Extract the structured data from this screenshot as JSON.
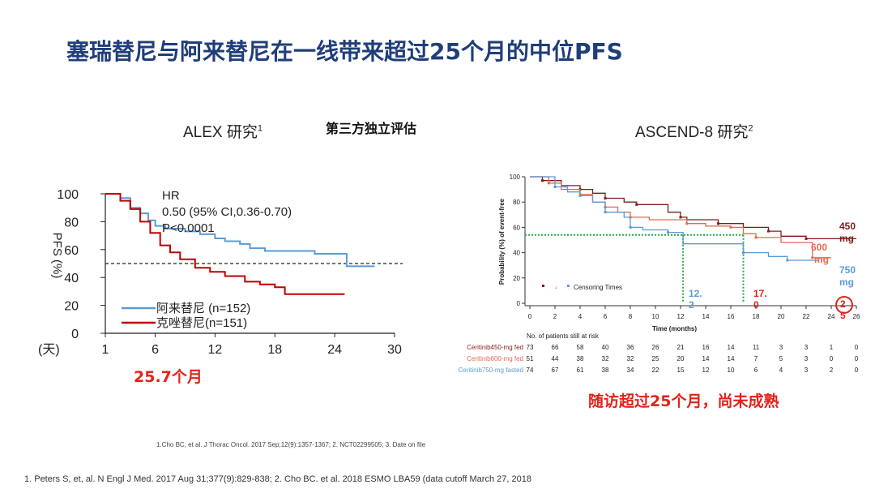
{
  "slide": {
    "title": "塞瑞替尼与阿来替尼在一线带来超过25个月的中位PFS",
    "left_title": "ALEX 研究",
    "left_title_sup": "1",
    "center_label": "第三方独立评估",
    "right_title": "ASCEND-8 研究",
    "right_title_sup": "2",
    "left_median": "25.7个月",
    "right_note": "随访超过25个月，尚未成熟",
    "footnote_small": "1.Cho BC, et al. J Thorac Oncol. 2017 Sep;12(9):1357-1367;  2. NCT02299505;  3. Date on file",
    "footnote": "1. Peters S, et, al. N Engl J Med. 2017 Aug 31;377(9):829-838;   2. Cho BC. et al. 2018 ESMO LBA59 (data cutoff March 27, 2018",
    "colors": {
      "title": "#1f3e7a",
      "highlight": "#e2231a"
    }
  },
  "chart_data": [
    {
      "type": "line",
      "ylabel": "PFS (%)",
      "xlabel": "(天)",
      "x_ticks": [
        1,
        6,
        12,
        18,
        24,
        30
      ],
      "y_ticks": [
        0,
        20,
        40,
        60,
        80,
        100
      ],
      "xlim": [
        1,
        30
      ],
      "ylim": [
        0,
        100
      ],
      "annotation": [
        "HR",
        "0.50 (95% CI,0.36-0.70)",
        "P<0.0001"
      ],
      "reference_line_y": 50,
      "legend_position": "bottom-left",
      "series": [
        {
          "name": "阿来替尼 (n=152)",
          "color": "#5b9bd5",
          "points": [
            [
              1,
              100
            ],
            [
              2.5,
              100
            ],
            [
              2.5,
              97
            ],
            [
              3.5,
              97
            ],
            [
              3.5,
              90
            ],
            [
              4.5,
              90
            ],
            [
              4.5,
              86
            ],
            [
              5.3,
              86
            ],
            [
              5.3,
              81
            ],
            [
              6,
              81
            ],
            [
              6,
              77
            ],
            [
              7,
              77
            ],
            [
              7,
              75
            ],
            [
              9,
              75
            ],
            [
              9,
              73
            ],
            [
              10.5,
              73
            ],
            [
              10.5,
              71
            ],
            [
              12,
              71
            ],
            [
              12,
              68
            ],
            [
              13,
              68
            ],
            [
              13,
              66
            ],
            [
              14.5,
              66
            ],
            [
              14.5,
              64
            ],
            [
              15.5,
              64
            ],
            [
              15.5,
              61
            ],
            [
              17,
              61
            ],
            [
              17,
              59
            ],
            [
              22,
              59
            ],
            [
              22,
              57
            ],
            [
              25.2,
              57
            ],
            [
              25.2,
              48
            ],
            [
              28,
              48
            ]
          ]
        },
        {
          "name": "克唑替尼(n=151)",
          "color": "#c00000",
          "points": [
            [
              1,
              100
            ],
            [
              2.5,
              100
            ],
            [
              2.5,
              95
            ],
            [
              3.5,
              95
            ],
            [
              3.5,
              89
            ],
            [
              4.5,
              89
            ],
            [
              4.5,
              80
            ],
            [
              5.5,
              80
            ],
            [
              5.5,
              72
            ],
            [
              6.5,
              72
            ],
            [
              6.5,
              63
            ],
            [
              7.5,
              63
            ],
            [
              7.5,
              58
            ],
            [
              8.5,
              58
            ],
            [
              8.5,
              53
            ],
            [
              10,
              53
            ],
            [
              10,
              47
            ],
            [
              11.5,
              47
            ],
            [
              11.5,
              44
            ],
            [
              13,
              44
            ],
            [
              13,
              41
            ],
            [
              15,
              41
            ],
            [
              15,
              37
            ],
            [
              16.5,
              37
            ],
            [
              16.5,
              35
            ],
            [
              18,
              35
            ],
            [
              18,
              33
            ],
            [
              19,
              33
            ],
            [
              19,
              28
            ],
            [
              25,
              28
            ]
          ]
        }
      ]
    },
    {
      "type": "line",
      "ylabel": "Probability (%) of event-free",
      "xlabel": "Time (months)",
      "x_ticks": [
        0,
        2,
        4,
        6,
        8,
        10,
        12,
        14,
        16,
        18,
        20,
        22,
        24,
        26
      ],
      "y_ticks": [
        0,
        20,
        40,
        60,
        80,
        100
      ],
      "xlim": [
        0,
        26
      ],
      "ylim": [
        0,
        100
      ],
      "legend_label": "Censoring Times",
      "legend_position": "bottom-left",
      "reference_line_y": 54,
      "median_labels": [
        {
          "text": "12.2",
          "line1": "12.",
          "line2": "2",
          "color": "#5b9bd5"
        },
        {
          "text": "17.0",
          "line1": "17.",
          "line2": "0",
          "color": "#e2231a"
        },
        {
          "text": "25",
          "line1": "2",
          "line2": "5",
          "color": "#e2231a"
        }
      ],
      "end_labels": [
        {
          "line1": "450",
          "line2": "mg",
          "color": "#7f1d1d"
        },
        {
          "line1": "600",
          "line2": "mg",
          "color": "#e26b52"
        },
        {
          "line1": "750",
          "line2": "mg",
          "color": "#5b9bd5"
        }
      ],
      "series": [
        {
          "name": "Ceritinib450-mg fed",
          "color": "#7f1d1d",
          "points": [
            [
              0,
              100
            ],
            [
              1,
              100
            ],
            [
              1,
              97
            ],
            [
              2.5,
              97
            ],
            [
              2.5,
              93
            ],
            [
              4,
              93
            ],
            [
              4,
              90
            ],
            [
              5,
              90
            ],
            [
              5,
              87
            ],
            [
              6,
              87
            ],
            [
              6,
              83
            ],
            [
              7.5,
              83
            ],
            [
              7.5,
              80
            ],
            [
              8.5,
              80
            ],
            [
              8.5,
              78
            ],
            [
              11,
              78
            ],
            [
              11,
              72
            ],
            [
              12,
              72
            ],
            [
              12,
              68
            ],
            [
              12.5,
              68
            ],
            [
              12.5,
              66
            ],
            [
              15,
              66
            ],
            [
              15,
              63
            ],
            [
              17,
              63
            ],
            [
              17,
              60
            ],
            [
              19,
              60
            ],
            [
              19,
              57
            ],
            [
              20,
              57
            ],
            [
              20,
              53
            ],
            [
              22,
              53
            ],
            [
              22,
              51
            ],
            [
              26,
              51
            ]
          ]
        },
        {
          "name": "Ceritinib600-mg fed",
          "color": "#e26b52",
          "points": [
            [
              0,
              100
            ],
            [
              1.5,
              100
            ],
            [
              1.5,
              95
            ],
            [
              2.5,
              95
            ],
            [
              2.5,
              90
            ],
            [
              4,
              90
            ],
            [
              4,
              86
            ],
            [
              5,
              86
            ],
            [
              5,
              80
            ],
            [
              6,
              80
            ],
            [
              6,
              76
            ],
            [
              7,
              76
            ],
            [
              7,
              72
            ],
            [
              8,
              72
            ],
            [
              8,
              68
            ],
            [
              9.5,
              68
            ],
            [
              9.5,
              66
            ],
            [
              12.5,
              66
            ],
            [
              12.5,
              63
            ],
            [
              14,
              63
            ],
            [
              14,
              61
            ],
            [
              16,
              61
            ],
            [
              16,
              60
            ],
            [
              17,
              60
            ],
            [
              17,
              55
            ],
            [
              18,
              55
            ],
            [
              18,
              52
            ],
            [
              20,
              52
            ],
            [
              20,
              48
            ],
            [
              22.5,
              48
            ],
            [
              22.5,
              36
            ],
            [
              24,
              36
            ]
          ]
        },
        {
          "name": "Ceritinib750-mg fasted",
          "color": "#5b9bd5",
          "points": [
            [
              0,
              100
            ],
            [
              2,
              100
            ],
            [
              2,
              92
            ],
            [
              3,
              92
            ],
            [
              3,
              88
            ],
            [
              4,
              88
            ],
            [
              4,
              85
            ],
            [
              5,
              85
            ],
            [
              5,
              80
            ],
            [
              6,
              80
            ],
            [
              6,
              72
            ],
            [
              7.5,
              72
            ],
            [
              7.5,
              68
            ],
            [
              8,
              68
            ],
            [
              8,
              60
            ],
            [
              9,
              60
            ],
            [
              9,
              58
            ],
            [
              11,
              58
            ],
            [
              11,
              56
            ],
            [
              12.2,
              56
            ],
            [
              12.2,
              47
            ],
            [
              17,
              47
            ],
            [
              17,
              40
            ],
            [
              19,
              40
            ],
            [
              19,
              37
            ],
            [
              20.5,
              37
            ],
            [
              20.5,
              34
            ],
            [
              23,
              34
            ]
          ]
        }
      ],
      "at_risk": {
        "header": "No. of patients still at risk",
        "rows": [
          {
            "label": "Ceritinib450-mg fed",
            "color": "#7f1d1d",
            "values": [
              "73",
              "66",
              "58",
              "40",
              "36",
              "26",
              "21",
              "16",
              "14",
              "11",
              "3",
              "3",
              "1",
              "0"
            ]
          },
          {
            "label": "Ceritinib600-mg fed",
            "color": "#e26b52",
            "values": [
              "51",
              "44",
              "38",
              "32",
              "32",
              "25",
              "20",
              "14",
              "14",
              "7",
              "5",
              "3",
              "0",
              "0"
            ]
          },
          {
            "label": "Ceritinib750-mg fasted",
            "color": "#5b9bd5",
            "values": [
              "74",
              "67",
              "61",
              "38",
              "34",
              "22",
              "15",
              "12",
              "10",
              "6",
              "4",
              "3",
              "2",
              "0"
            ]
          }
        ]
      }
    }
  ]
}
